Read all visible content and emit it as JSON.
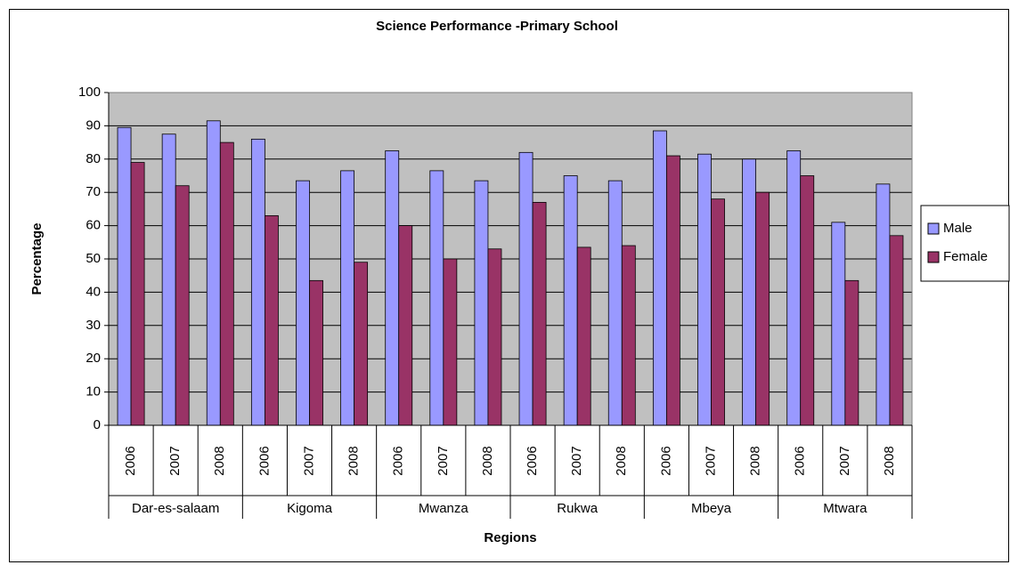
{
  "chart_data": {
    "type": "bar",
    "title": "Science Performance -Primary School",
    "xlabel": "Regions",
    "ylabel": "Percentage",
    "groups": [
      {
        "label": "Dar-es-salaam",
        "categories": [
          "2006",
          "2007",
          "2008"
        ]
      },
      {
        "label": "Kigoma",
        "categories": [
          "2006",
          "2007",
          "2008"
        ]
      },
      {
        "label": "Mwanza",
        "categories": [
          "2006",
          "2007",
          "2008"
        ]
      },
      {
        "label": "Rukwa",
        "categories": [
          "2006",
          "2007",
          "2008"
        ]
      },
      {
        "label": "Mbeya",
        "categories": [
          "2006",
          "2007",
          "2008"
        ]
      },
      {
        "label": "Mtwara",
        "categories": [
          "2006",
          "2007",
          "2008"
        ]
      }
    ],
    "series": [
      {
        "name": "Male",
        "color": "#9999ff",
        "values": [
          89.5,
          87.5,
          91.5,
          86,
          73.5,
          76.5,
          82.5,
          76.5,
          73.5,
          82,
          75,
          73.5,
          88.5,
          81.5,
          80,
          82.5,
          61,
          72.5
        ]
      },
      {
        "name": "Female",
        "color": "#993366",
        "values": [
          79,
          72,
          85,
          63,
          43.5,
          49,
          60,
          50,
          53,
          67,
          53.5,
          54,
          81,
          68,
          70,
          75,
          43.5,
          57
        ]
      }
    ],
    "ylim": [
      0,
      100
    ],
    "yticks": [
      0,
      10,
      20,
      30,
      40,
      50,
      60,
      70,
      80,
      90,
      100
    ],
    "grid": true,
    "plot_background": "#c0c0c0",
    "legend": "right"
  }
}
